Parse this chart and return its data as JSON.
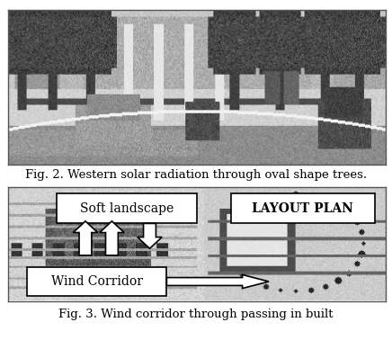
{
  "fig_caption_1": "Fig. 2. Western solar radiation through oval shape trees.",
  "fig_caption_2": "Fig. 3. Wind corridor through passing in built",
  "label_soft_landscape": "Soft landscape",
  "label_layout_plan": "LAYOUT PLAN",
  "label_wind_corridor": "Wind Corridor",
  "caption_fontsize": 9.5,
  "label_fontsize": 10,
  "box_facecolor": "#ffffff",
  "box_edgecolor": "#000000",
  "arrow_facecolor": "#ffffff",
  "arrow_edgecolor": "#000000",
  "top_img_border": "#555555",
  "bottom_img_border": "#555555"
}
